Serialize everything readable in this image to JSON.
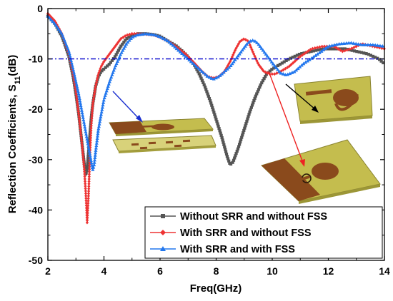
{
  "chart_data": {
    "type": "line",
    "xlabel": "Freq(GHz)",
    "ylabel": "Reflection Coefficients, S",
    "ylabel_sub": "11",
    "ylabel_suffix": "(dB)",
    "xlim": [
      2,
      14
    ],
    "ylim": [
      -50,
      0
    ],
    "xticks": [
      2,
      4,
      6,
      8,
      10,
      12,
      14
    ],
    "yticks": [
      0,
      -10,
      -20,
      -30,
      -40,
      -50
    ],
    "reference_line": {
      "y": -10,
      "color": "#0000cc",
      "style": "dash-dot"
    },
    "legend_position": "bottom-right",
    "grid": false,
    "series": [
      {
        "name": "Without SRR and without FSS",
        "color": "#555555",
        "marker": "square",
        "x": [
          2.0,
          2.25,
          2.5,
          2.75,
          2.9,
          3.0,
          3.1,
          3.2,
          3.3,
          3.35,
          3.4,
          3.45,
          3.5,
          3.55,
          3.6,
          3.7,
          3.8,
          3.9,
          4.0,
          4.2,
          4.4,
          4.6,
          4.8,
          5.0,
          5.2,
          5.5,
          5.8,
          6.0,
          6.3,
          6.6,
          6.9,
          7.2,
          7.4,
          7.6,
          7.8,
          8.0,
          8.2,
          8.4,
          8.5,
          8.6,
          8.8,
          9.0,
          9.2,
          9.4,
          9.6,
          9.8,
          10.0,
          10.3,
          10.6,
          11.0,
          11.4,
          11.8,
          12.2,
          12.6,
          13.0,
          13.4,
          13.8,
          14.0
        ],
        "y": [
          -1.5,
          -3.0,
          -5.5,
          -9.5,
          -13.5,
          -17.0,
          -21.0,
          -26.0,
          -31.0,
          -33.0,
          -32.0,
          -28.5,
          -25.0,
          -21.5,
          -19.0,
          -15.5,
          -13.5,
          -12.5,
          -12.0,
          -11.0,
          -9.5,
          -7.5,
          -6.0,
          -5.3,
          -5.0,
          -5.0,
          -5.2,
          -5.5,
          -6.5,
          -7.5,
          -9.0,
          -11.0,
          -13.0,
          -15.5,
          -18.5,
          -22.0,
          -25.5,
          -29.5,
          -31.0,
          -30.5,
          -27.5,
          -24.0,
          -20.5,
          -17.5,
          -15.0,
          -13.0,
          -12.0,
          -11.0,
          -10.0,
          -9.0,
          -8.5,
          -8.0,
          -8.0,
          -8.0,
          -8.5,
          -9.0,
          -10.0,
          -11.0
        ]
      },
      {
        "name": "With SRR and without FSS",
        "color": "#ee3333",
        "marker": "diamond",
        "x": [
          2.0,
          2.25,
          2.5,
          2.75,
          2.9,
          3.0,
          3.1,
          3.2,
          3.3,
          3.35,
          3.4,
          3.45,
          3.5,
          3.55,
          3.6,
          3.7,
          3.8,
          3.9,
          4.0,
          4.2,
          4.4,
          4.6,
          4.8,
          5.0,
          5.2,
          5.5,
          5.8,
          6.0,
          6.3,
          6.6,
          6.9,
          7.2,
          7.5,
          7.7,
          7.9,
          8.1,
          8.3,
          8.5,
          8.7,
          8.85,
          9.0,
          9.15,
          9.3,
          9.5,
          9.7,
          9.9,
          10.1,
          10.3,
          10.6,
          11.0,
          11.4,
          11.8,
          12.2,
          12.5,
          12.8,
          13.2,
          13.6,
          14.0
        ],
        "y": [
          -1.0,
          -2.5,
          -5.0,
          -9.0,
          -13.0,
          -16.5,
          -21.0,
          -26.0,
          -32.0,
          -36.5,
          -42.5,
          -37.0,
          -29.0,
          -23.0,
          -19.0,
          -15.5,
          -13.0,
          -11.5,
          -10.5,
          -9.0,
          -7.5,
          -6.0,
          -5.3,
          -5.0,
          -5.0,
          -5.1,
          -5.3,
          -5.7,
          -6.5,
          -7.7,
          -9.0,
          -10.7,
          -12.5,
          -13.5,
          -13.8,
          -13.5,
          -12.5,
          -10.5,
          -8.0,
          -6.5,
          -6.0,
          -6.5,
          -8.5,
          -11.0,
          -12.5,
          -13.0,
          -13.0,
          -12.5,
          -11.5,
          -9.5,
          -8.0,
          -7.5,
          -7.5,
          -8.5,
          -8.0,
          -7.0,
          -7.5,
          -8.0
        ]
      },
      {
        "name": "With SRR and with FSS",
        "color": "#2277ee",
        "marker": "triangle",
        "x": [
          2.0,
          2.25,
          2.5,
          2.75,
          2.9,
          3.0,
          3.1,
          3.2,
          3.3,
          3.4,
          3.5,
          3.55,
          3.6,
          3.65,
          3.7,
          3.8,
          3.9,
          4.0,
          4.2,
          4.4,
          4.6,
          4.8,
          5.0,
          5.2,
          5.5,
          5.8,
          6.0,
          6.3,
          6.6,
          6.9,
          7.2,
          7.5,
          7.7,
          7.9,
          8.1,
          8.3,
          8.5,
          8.7,
          8.9,
          9.1,
          9.2,
          9.3,
          9.4,
          9.5,
          9.7,
          9.9,
          10.1,
          10.3,
          10.5,
          10.8,
          11.1,
          11.5,
          12.0,
          12.4,
          12.8,
          13.2,
          13.6,
          14.0
        ],
        "y": [
          -1.5,
          -3.0,
          -5.0,
          -8.5,
          -12.0,
          -14.5,
          -17.0,
          -20.0,
          -23.0,
          -26.0,
          -29.0,
          -30.5,
          -32.0,
          -31.0,
          -28.5,
          -24.0,
          -21.0,
          -18.0,
          -14.5,
          -11.5,
          -9.0,
          -7.0,
          -5.7,
          -5.2,
          -5.0,
          -5.2,
          -5.6,
          -6.5,
          -8.0,
          -9.5,
          -11.0,
          -12.5,
          -13.5,
          -14.0,
          -13.5,
          -12.5,
          -11.5,
          -10.0,
          -8.5,
          -7.0,
          -6.5,
          -6.3,
          -6.5,
          -7.0,
          -8.5,
          -10.0,
          -11.5,
          -12.8,
          -13.2,
          -12.5,
          -11.0,
          -9.5,
          -7.5,
          -7.0,
          -6.8,
          -7.2,
          -7.2,
          -7.5
        ]
      }
    ]
  },
  "colors": {
    "inset_board": "#c4bd4e",
    "inset_board_edge": "#8a8430",
    "inset_pattern": "#8a4a1c"
  }
}
